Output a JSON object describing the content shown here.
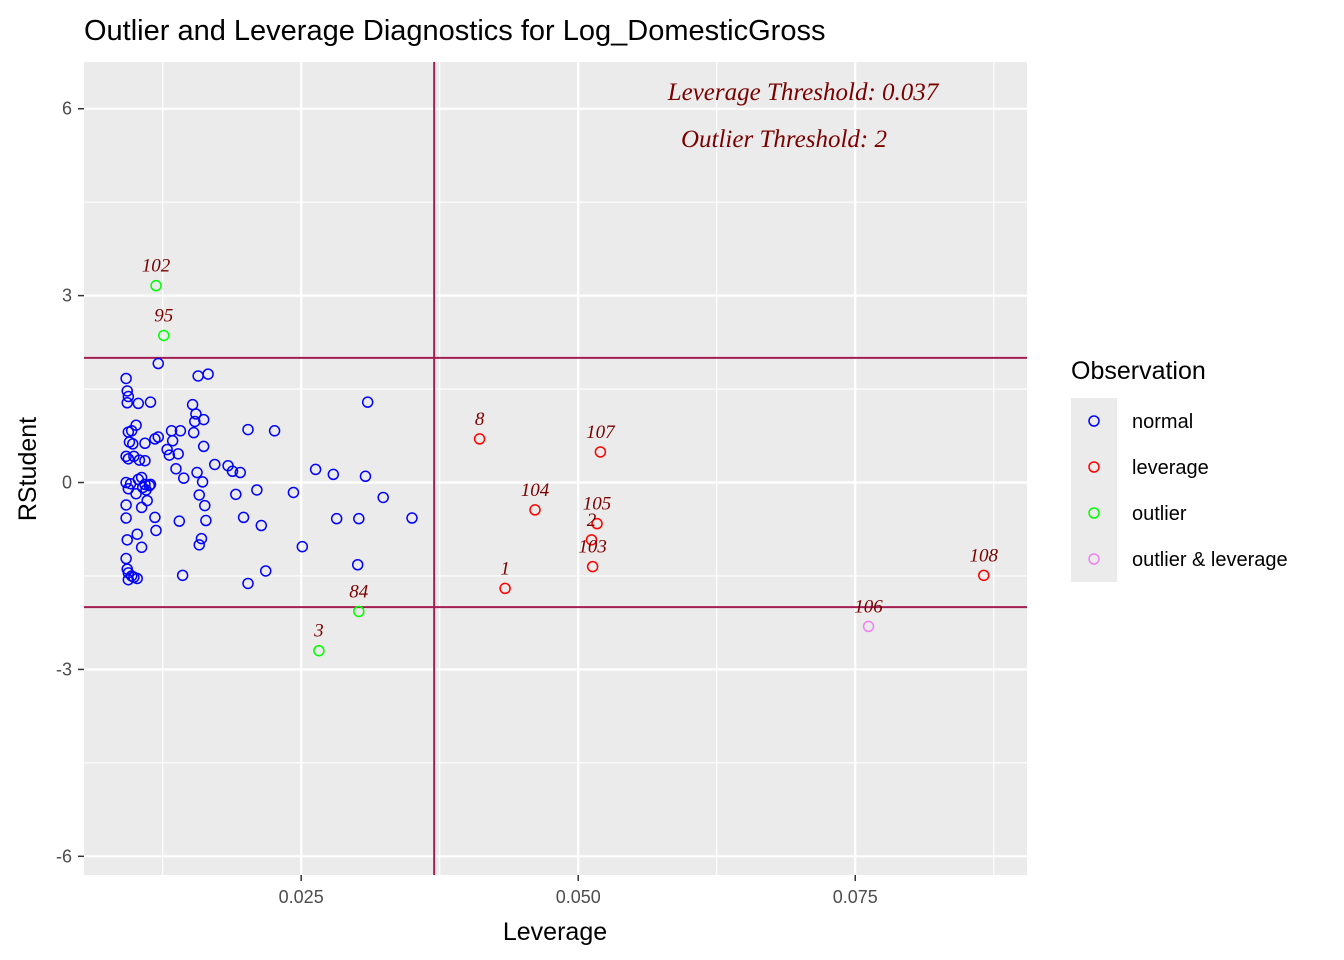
{
  "chart_data": {
    "type": "scatter",
    "title": "Outlier and Leverage Diagnostics for Log_DomesticGross",
    "xlabel": "Leverage",
    "ylabel": "RStudent",
    "xlim": [
      0.0054,
      0.0905
    ],
    "ylim": [
      -6.3,
      6.75
    ],
    "x_ticks": [
      0.025,
      0.05,
      0.075
    ],
    "x_tick_labels": [
      "0.025",
      "0.050",
      "0.075"
    ],
    "y_ticks": [
      -6,
      -3,
      0,
      3,
      6
    ],
    "y_tick_labels": [
      "-6",
      "-3",
      "0",
      "3",
      "6"
    ],
    "grid": true,
    "legend_position": "right",
    "legend": {
      "title": "Observation",
      "entries": [
        {
          "key": "normal",
          "label": "normal",
          "color": "#0000ff"
        },
        {
          "key": "leverage",
          "label": "leverage",
          "color": "#ff0000"
        },
        {
          "key": "outlier",
          "label": "outlier",
          "color": "#00ff00"
        },
        {
          "key": "outlier_leverage",
          "label": "outlier & leverage",
          "color": "#ee82ee"
        }
      ]
    },
    "thresholds": {
      "leverage": 0.037,
      "outlier_upper": 2,
      "outlier_lower": -2,
      "line_color": "#a21f54"
    },
    "annotations": [
      {
        "text": "Leverage Threshold: 0.037",
        "color": "#7a0000"
      },
      {
        "text": "Outlier Threshold: 2",
        "color": "#7a0000"
      }
    ],
    "label_color": "#7a0000",
    "series": [
      {
        "name": "normal",
        "color": "#0000ff",
        "points": [
          [
            0.0092,
            1.67
          ],
          [
            0.0093,
            1.47
          ],
          [
            0.0094,
            1.38
          ],
          [
            0.0093,
            1.28
          ],
          [
            0.0097,
            0.83
          ],
          [
            0.0094,
            0.81
          ],
          [
            0.0095,
            0.65
          ],
          [
            0.0098,
            0.62
          ],
          [
            0.0092,
            0.42
          ],
          [
            0.0094,
            0.38
          ],
          [
            0.0099,
            0.42
          ],
          [
            0.0101,
            0.92
          ],
          [
            0.0103,
            1.27
          ],
          [
            0.0104,
            0.36
          ],
          [
            0.0109,
            0.63
          ],
          [
            0.0109,
            0.35
          ],
          [
            0.0114,
            1.29
          ],
          [
            0.0118,
            0.7
          ],
          [
            0.0121,
            0.73
          ],
          [
            0.0121,
            1.91
          ],
          [
            0.0092,
            0.0
          ],
          [
            0.0094,
            -0.1
          ],
          [
            0.0096,
            -0.02
          ],
          [
            0.0101,
            -0.18
          ],
          [
            0.0103,
            0.05
          ],
          [
            0.0106,
            0.08
          ],
          [
            0.0107,
            -0.08
          ],
          [
            0.0109,
            -0.03
          ],
          [
            0.011,
            -0.12
          ],
          [
            0.0113,
            -0.05
          ],
          [
            0.0114,
            -0.03
          ],
          [
            0.0106,
            -0.4
          ],
          [
            0.0092,
            -0.36
          ],
          [
            0.0092,
            -0.57
          ],
          [
            0.0111,
            -0.29
          ],
          [
            0.0118,
            -0.56
          ],
          [
            0.0119,
            -0.77
          ],
          [
            0.0102,
            -0.83
          ],
          [
            0.0106,
            -1.04
          ],
          [
            0.0093,
            -0.92
          ],
          [
            0.0092,
            -1.22
          ],
          [
            0.0093,
            -1.39
          ],
          [
            0.0094,
            -1.45
          ],
          [
            0.0094,
            -1.56
          ],
          [
            0.0097,
            -1.5
          ],
          [
            0.0099,
            -1.52
          ],
          [
            0.0102,
            -1.54
          ],
          [
            0.0129,
            0.53
          ],
          [
            0.0131,
            0.44
          ],
          [
            0.0133,
            0.83
          ],
          [
            0.0134,
            0.67
          ],
          [
            0.0137,
            0.22
          ],
          [
            0.0139,
            0.46
          ],
          [
            0.014,
            -0.62
          ],
          [
            0.0141,
            0.83
          ],
          [
            0.0143,
            -1.49
          ],
          [
            0.0144,
            0.07
          ],
          [
            0.0152,
            1.25
          ],
          [
            0.0153,
            0.8
          ],
          [
            0.0154,
            0.98
          ],
          [
            0.0155,
            1.1
          ],
          [
            0.0156,
            0.16
          ],
          [
            0.0157,
            1.71
          ],
          [
            0.0158,
            -0.2
          ],
          [
            0.0158,
            -1.0
          ],
          [
            0.016,
            -0.9
          ],
          [
            0.0161,
            0.01
          ],
          [
            0.0162,
            1.01
          ],
          [
            0.0162,
            0.58
          ],
          [
            0.0163,
            -0.37
          ],
          [
            0.0164,
            -0.61
          ],
          [
            0.0166,
            1.74
          ],
          [
            0.0172,
            0.29
          ],
          [
            0.0184,
            0.27
          ],
          [
            0.0188,
            0.18
          ],
          [
            0.0191,
            -0.19
          ],
          [
            0.0195,
            0.16
          ],
          [
            0.0198,
            -0.56
          ],
          [
            0.0202,
            0.85
          ],
          [
            0.0202,
            -1.62
          ],
          [
            0.021,
            -0.12
          ],
          [
            0.0214,
            -0.69
          ],
          [
            0.0218,
            -1.42
          ],
          [
            0.0226,
            0.83
          ],
          [
            0.0243,
            -0.16
          ],
          [
            0.0251,
            -1.03
          ],
          [
            0.0263,
            0.21
          ],
          [
            0.0279,
            0.13
          ],
          [
            0.0282,
            -0.58
          ],
          [
            0.0301,
            -1.32
          ],
          [
            0.0302,
            -0.58
          ],
          [
            0.0308,
            0.1
          ],
          [
            0.031,
            1.29
          ],
          [
            0.0324,
            -0.24
          ],
          [
            0.035,
            -0.57
          ]
        ]
      },
      {
        "name": "leverage",
        "color": "#ff0000",
        "points": [
          {
            "x": 0.0411,
            "y": 0.7,
            "label": "8"
          },
          {
            "x": 0.052,
            "y": 0.49,
            "label": "107"
          },
          {
            "x": 0.0461,
            "y": -0.44,
            "label": "104"
          },
          {
            "x": 0.0517,
            "y": -0.66,
            "label": "105"
          },
          {
            "x": 0.0512,
            "y": -0.92,
            "label": "2"
          },
          {
            "x": 0.0513,
            "y": -1.35,
            "label": "103"
          },
          {
            "x": 0.0434,
            "y": -1.7,
            "label": "1"
          },
          {
            "x": 0.0866,
            "y": -1.49,
            "label": "108"
          }
        ]
      },
      {
        "name": "outlier",
        "color": "#00ff00",
        "points": [
          {
            "x": 0.0119,
            "y": 3.16,
            "label": "102"
          },
          {
            "x": 0.0126,
            "y": 2.36,
            "label": "95"
          },
          {
            "x": 0.0302,
            "y": -2.07,
            "label": "84"
          },
          {
            "x": 0.0266,
            "y": -2.7,
            "label": "3"
          }
        ]
      },
      {
        "name": "outlier & leverage",
        "color": "#ee82ee",
        "points": [
          {
            "x": 0.0762,
            "y": -2.31,
            "label": "106"
          }
        ]
      }
    ]
  }
}
